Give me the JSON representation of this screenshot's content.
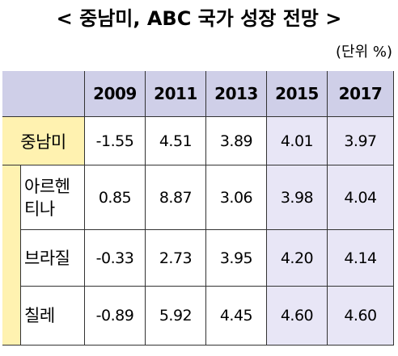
{
  "title": "< 중남미, ABC 국가 성장 전망 >",
  "unit": "(단위 %)",
  "table": {
    "columns": [
      "2009",
      "2011",
      "2013",
      "2015",
      "2017"
    ],
    "rows": [
      {
        "label": "중남미",
        "values": [
          "-1.55",
          "4.51",
          "3.89",
          "4.01",
          "3.97"
        ]
      },
      {
        "label": "아르헨티나",
        "values": [
          "0.85",
          "8.87",
          "3.06",
          "3.98",
          "4.04"
        ]
      },
      {
        "label": "브라질",
        "values": [
          "-0.33",
          "2.73",
          "3.95",
          "4.20",
          "4.14"
        ]
      },
      {
        "label": "칠레",
        "values": [
          "-0.89",
          "5.92",
          "4.45",
          "4.60",
          "4.60"
        ]
      }
    ]
  }
}
